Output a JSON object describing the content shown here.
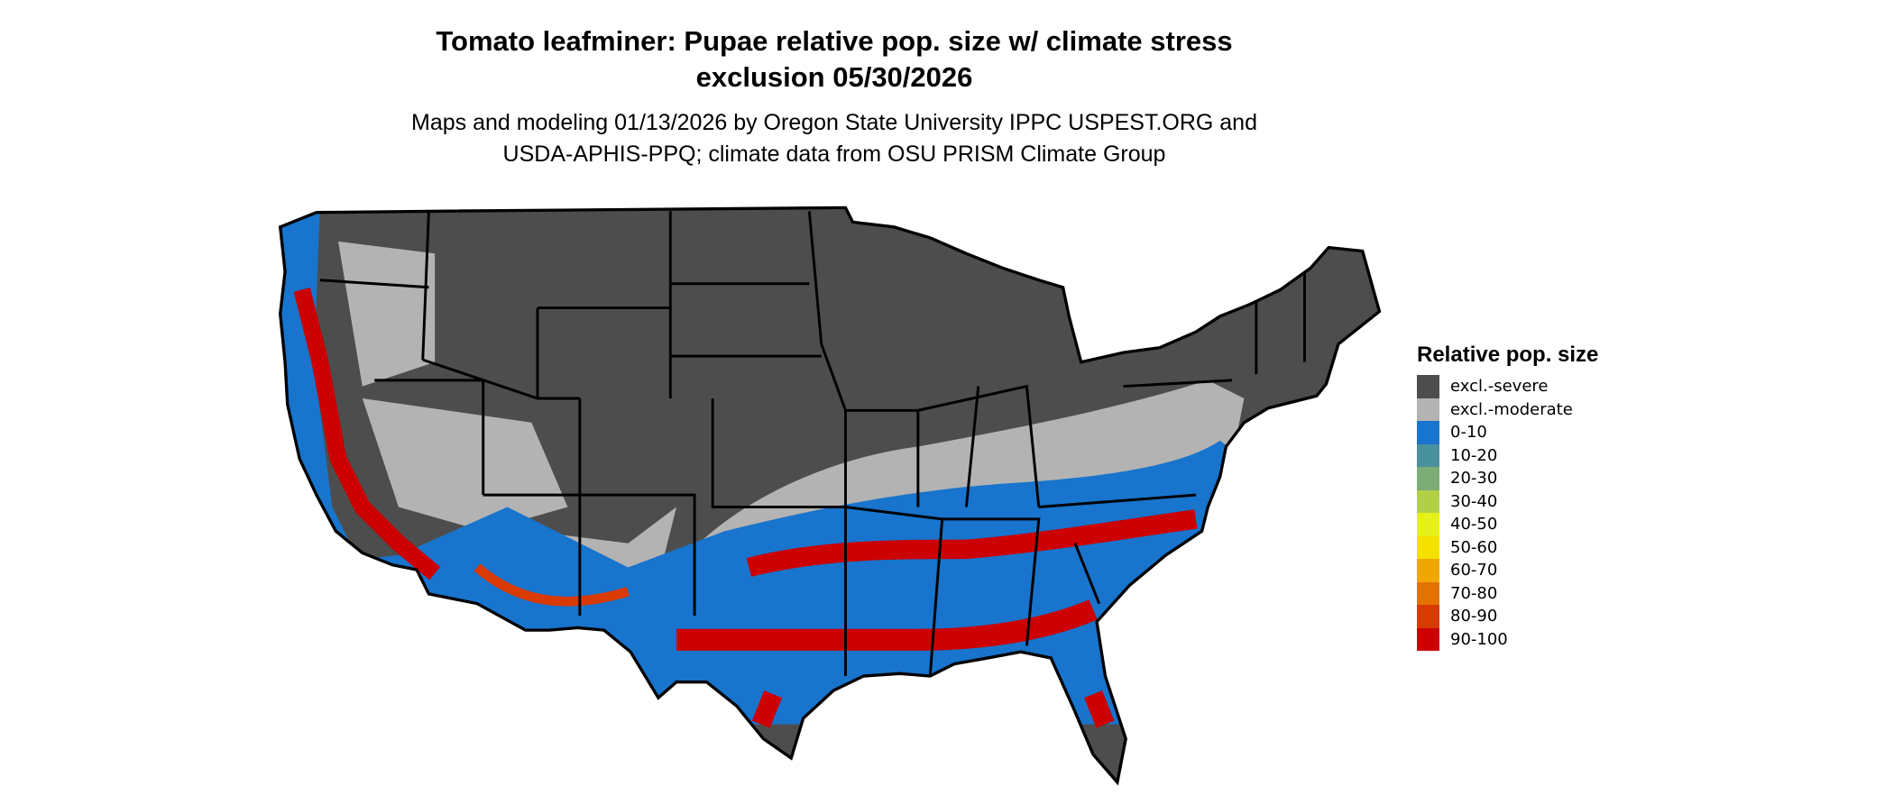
{
  "title_line1": "Tomato leafminer: Pupae relative pop. size w/ climate stress",
  "title_line2": "exclusion 05/30/2026",
  "subtitle_line1": "Maps and modeling 01/13/2026 by Oregon State University IPPC USPEST.ORG and",
  "subtitle_line2": "USDA-APHIS-PPQ; climate data from OSU PRISM Climate Group",
  "legend": {
    "title": "Relative pop. size",
    "items": [
      {
        "label": "excl.-severe",
        "color": "#4d4d4d"
      },
      {
        "label": "excl.-moderate",
        "color": "#b3b3b3"
      },
      {
        "label": "0-10",
        "color": "#1874cd"
      },
      {
        "label": "10-20",
        "color": "#4a919e"
      },
      {
        "label": "20-30",
        "color": "#7cad77"
      },
      {
        "label": "30-40",
        "color": "#b2d046"
      },
      {
        "label": "40-50",
        "color": "#e6f01a"
      },
      {
        "label": "50-60",
        "color": "#f5e000"
      },
      {
        "label": "60-70",
        "color": "#f0a800"
      },
      {
        "label": "70-80",
        "color": "#e37200"
      },
      {
        "label": "80-90",
        "color": "#d93a00"
      },
      {
        "label": "90-100",
        "color": "#cc0000"
      }
    ]
  }
}
